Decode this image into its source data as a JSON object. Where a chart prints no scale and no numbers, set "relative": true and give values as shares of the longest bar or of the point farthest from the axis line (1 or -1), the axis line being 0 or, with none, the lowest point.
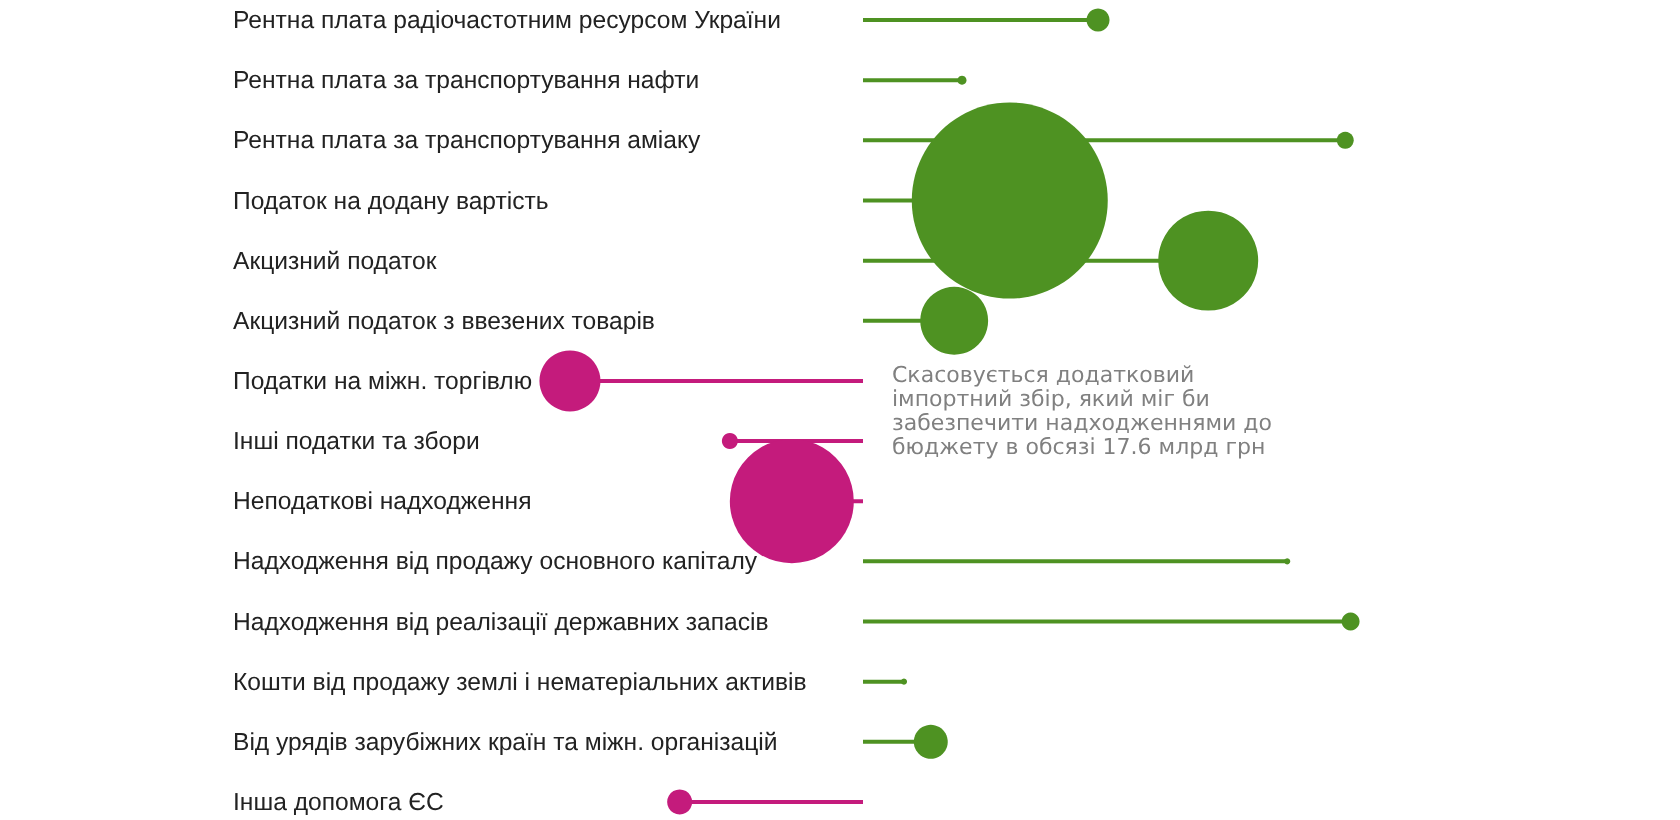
{
  "chart_data": {
    "type": "lollipop",
    "orientation": "horizontal",
    "relative": true,
    "categories": [
      "Рентна плата радіочастотним ресурсом України",
      "Рентна плата за транспортування нафти",
      "Рентна плата за транспортування аміаку",
      "Податок на додану вартість",
      "Акцизний податок",
      "Акцизний податок з ввезених товарів",
      "Податки на міжн. торгівлю",
      "Інші податки та збори",
      "Неподаткові надходження",
      "Надходження від продажу основного капіталу",
      "Надходження від реалізації державних запасів",
      "Кошти від продажу землі і нематеріальних активів",
      "Від урядів зарубіжних країн та міжн. організацій",
      "Інша допомога ЄС"
    ],
    "values": [
      0.482,
      0.203,
      0.989,
      0.301,
      0.708,
      0.187,
      -0.601,
      -0.273,
      -0.146,
      0.87,
      1,
      0.084,
      0.139,
      -0.376
    ],
    "sizes": [
      0.0138,
      0.0021,
      0.0075,
      1,
      0.26,
      0.12,
      0.097,
      0.0067,
      0.4,
      0.001,
      0.0084,
      0.001,
      0.03,
      0.0163
    ],
    "colors": [
      "#4e9222",
      "#4e9222",
      "#4e9222",
      "#4e9222",
      "#4e9222",
      "#4e9222",
      "#c41b7c",
      "#c41b7c",
      "#c41b7c",
      "#4e9222",
      "#4e9222",
      "#4e9222",
      "#4e9222",
      "#c41b7c"
    ],
    "annotations": [
      "Скасовується додатковий імпортний збір, який міг би забезпечити надходженнями до бюджету в обсязі 17.6 млрд грн"
    ]
  }
}
